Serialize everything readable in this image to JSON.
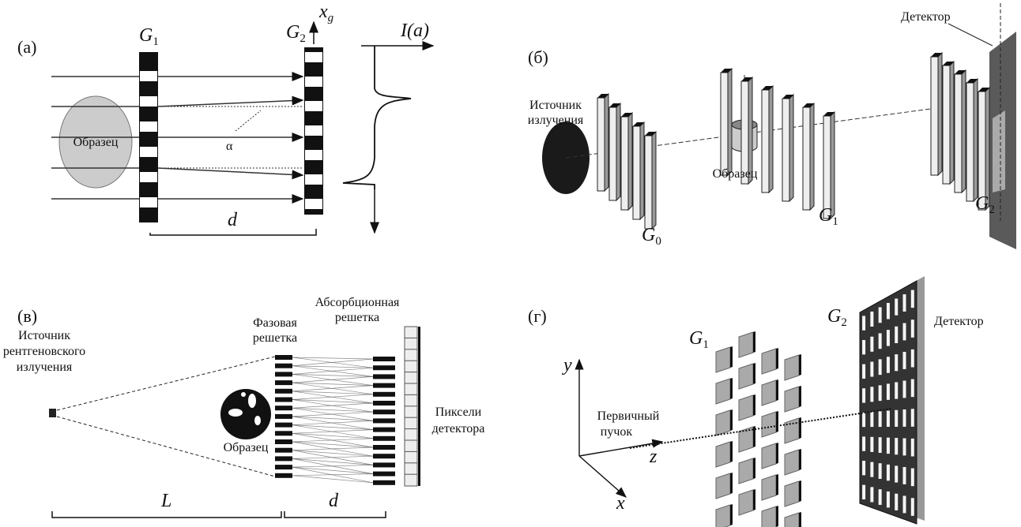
{
  "panel_a": {
    "label": "(а)",
    "grating1": {
      "main": "G",
      "sub": "1"
    },
    "grating2": {
      "main": "G",
      "sub": "2"
    },
    "axis": {
      "main": "x",
      "sub": "g"
    },
    "intensity": "I(a)",
    "sample": "Образец",
    "angle": "α",
    "distance": "d"
  },
  "panel_b": {
    "label": "(б)",
    "detector": "Детектор",
    "source": [
      "Источник",
      "излучения"
    ],
    "sample": "Образец",
    "grating0": {
      "main": "G",
      "sub": "0"
    },
    "grating1": {
      "main": "G",
      "sub": "1"
    },
    "grating2": {
      "main": "G",
      "sub": "2"
    }
  },
  "panel_c": {
    "label": "(в)",
    "absorption_grating": [
      "Абсорбционная",
      "решетка"
    ],
    "phase_grating": [
      "Фазовая",
      "решетка"
    ],
    "source": [
      "Источник",
      "рентгеновского",
      "излучения"
    ],
    "sample": "Образец",
    "pixels": [
      "Пиксели",
      "детектора"
    ],
    "source_distance": "L",
    "grating_distance": "d"
  },
  "panel_d": {
    "label": "(г)",
    "grating2": {
      "main": "G",
      "sub": "2"
    },
    "detector": "Детектор",
    "grating1": {
      "main": "G",
      "sub": "1"
    },
    "y_axis": "y",
    "beam": [
      "Первичный",
      "пучок"
    ],
    "z_axis": "z",
    "x_axis": "x"
  }
}
